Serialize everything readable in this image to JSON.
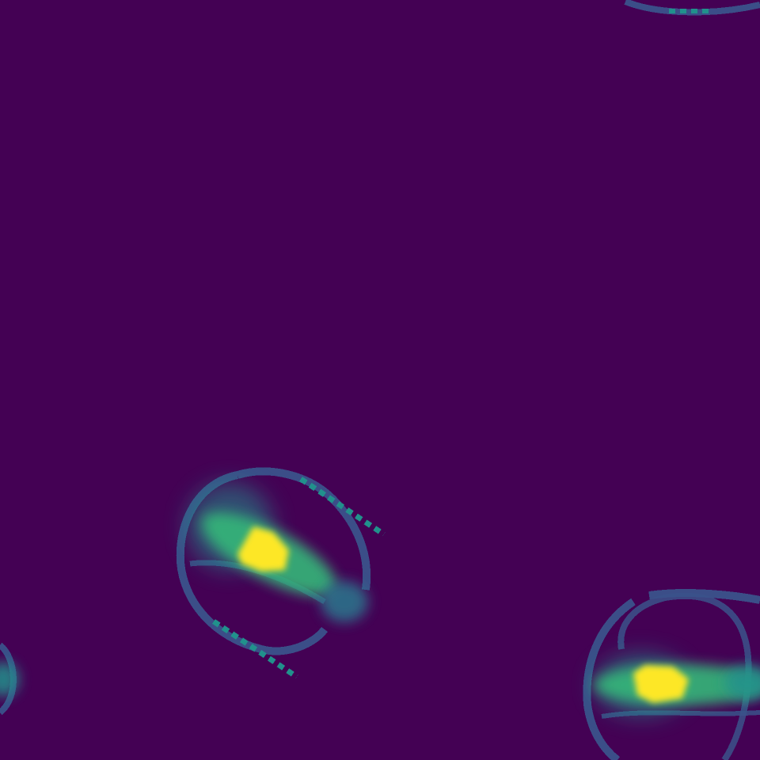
{
  "image": {
    "colormap": "viridis",
    "background_color": "#440154",
    "blobs": [
      {
        "name": "blob-center-left",
        "shell_color": "#3b528b",
        "shell_bright_color": "#21918c",
        "body_color": "#35b779",
        "core_color": "#fde725",
        "tail_color": "#2a788e"
      },
      {
        "name": "blob-bottom-right",
        "shell_color": "#3b528b",
        "shell_bright_color": "#21918c",
        "body_color": "#35b779",
        "core_color": "#fde725",
        "tail_color": "#21918c"
      },
      {
        "name": "blob-top-right",
        "shell_color": "#3b528b",
        "shell_bright_color": "#21918c"
      },
      {
        "name": "blob-left-edge",
        "shell_color": "#3b528b",
        "shell_bright_color": "#21918c"
      }
    ]
  }
}
